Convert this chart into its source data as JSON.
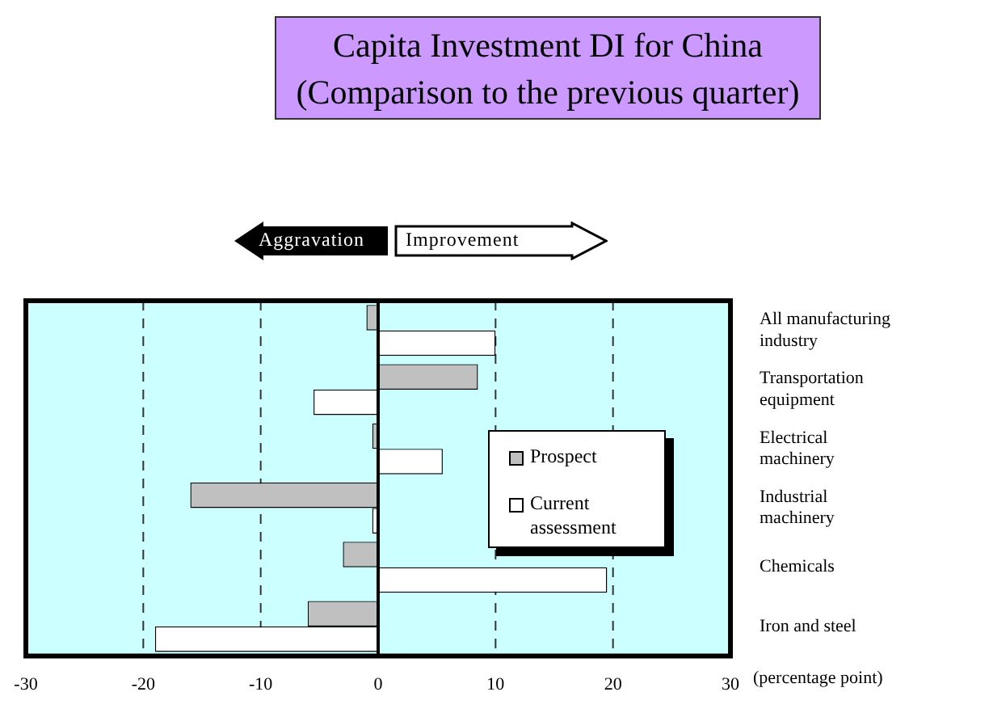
{
  "chart_data": {
    "type": "bar",
    "orientation": "horizontal",
    "title": "Capita Investment DI for China\n(Comparison to the previous quarter)",
    "xlabel": "(percentage point)",
    "annotations": [
      "Aggravation",
      "Improvement"
    ],
    "categories": [
      "All manufacturing industry",
      "Transportation equipment",
      "Electrical machinery",
      "Industrial machinery",
      "Chemicals",
      "Iron and steel"
    ],
    "series": [
      {
        "name": "Prospect",
        "color": "#c0c0c0",
        "values": [
          -1,
          8.5,
          -0.5,
          -16,
          -3,
          -6
        ]
      },
      {
        "name": "Current assessment",
        "color": "#ffffff",
        "values": [
          10,
          -5.5,
          5.5,
          -0.5,
          19.5,
          -19
        ]
      }
    ],
    "xlim": [
      -30,
      30
    ],
    "xticks": [
      -30,
      -20,
      -10,
      0,
      10,
      20,
      30
    ],
    "grid": "x",
    "legend": "right"
  }
}
